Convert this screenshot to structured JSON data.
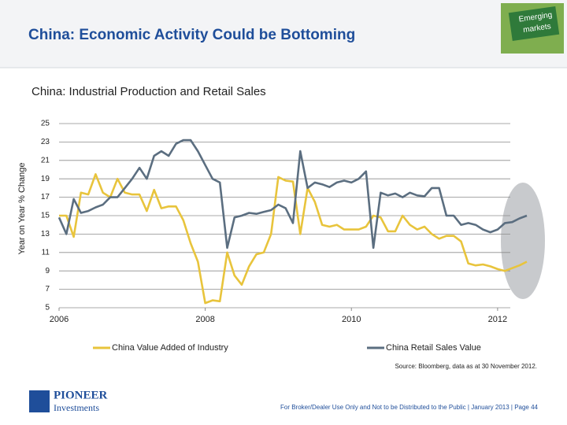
{
  "slide": {
    "title": "China: Economic Activity Could be Bottoming",
    "badge": [
      "Emerging",
      "markets"
    ],
    "source": "Source: Bloomberg, data as at 30 November 2012.",
    "logo": [
      "PIONEER",
      "Investments"
    ],
    "footer": "For Broker/Dealer Use Only and Not to be Distributed to the Public  | January 2013 | Page 44"
  },
  "chart_data": {
    "type": "line",
    "title": "China: Industrial Production and Retail Sales",
    "y_label": "Year on Year % Change",
    "x": [
      2006,
      2006.1,
      2006.2,
      2006.3,
      2006.4,
      2006.5,
      2006.6,
      2006.7,
      2006.8,
      2006.9,
      2007,
      2007.1,
      2007.2,
      2007.3,
      2007.4,
      2007.5,
      2007.6,
      2007.7,
      2007.8,
      2007.9,
      2008,
      2008.1,
      2008.2,
      2008.3,
      2008.4,
      2008.5,
      2008.6,
      2008.7,
      2008.8,
      2008.9,
      2009,
      2009.1,
      2009.2,
      2009.3,
      2009.4,
      2009.5,
      2009.6,
      2009.7,
      2009.8,
      2009.9,
      2010,
      2010.1,
      2010.2,
      2010.3,
      2010.4,
      2010.5,
      2010.6,
      2010.7,
      2010.8,
      2010.9,
      2011,
      2011.1,
      2011.2,
      2011.3,
      2011.4,
      2011.5,
      2011.6,
      2011.7,
      2011.8,
      2011.9,
      2012,
      2012.1,
      2012.2,
      2012.3,
      2012.4
    ],
    "xlim": [
      2006,
      2012.4
    ],
    "xticks": [
      2006,
      2008,
      2010,
      2012
    ],
    "ylim": [
      5,
      25
    ],
    "yticks": [
      5,
      7,
      9,
      11,
      13,
      15,
      17,
      19,
      21,
      23,
      25
    ],
    "grid": true,
    "series": [
      {
        "name": "China Value Added of Industry",
        "color": "#e8c43c",
        "values": [
          15.0,
          15.0,
          12.7,
          17.5,
          17.3,
          19.5,
          17.5,
          17.0,
          19.0,
          17.5,
          17.3,
          17.3,
          15.5,
          17.8,
          15.8,
          16.0,
          16.0,
          14.5,
          12.0,
          10.0,
          5.5,
          5.8,
          5.7,
          11.0,
          8.5,
          7.5,
          9.5,
          10.8,
          11.0,
          13.0,
          19.2,
          18.8,
          18.7,
          13.0,
          18.0,
          16.5,
          14.0,
          13.8,
          14.0,
          13.5,
          13.5,
          13.5,
          13.8,
          15.0,
          14.8,
          13.3,
          13.3,
          15.0,
          14.0,
          13.5,
          13.8,
          13.0,
          12.5,
          12.8,
          12.8,
          12.2,
          9.8,
          9.6,
          9.7,
          9.5,
          9.2,
          9.0,
          9.3,
          9.6,
          10.0
        ]
      },
      {
        "name": "China Retail Sales Value",
        "color": "#5b6e80",
        "values": [
          14.8,
          13.0,
          16.8,
          15.3,
          15.5,
          15.9,
          16.2,
          17.0,
          17.0,
          18.0,
          19.0,
          20.2,
          19.0,
          21.5,
          22.0,
          21.5,
          22.8,
          23.2,
          23.2,
          22.0,
          20.5,
          19.0,
          18.6,
          11.5,
          14.8,
          15.0,
          15.3,
          15.2,
          15.4,
          15.6,
          16.2,
          15.8,
          14.2,
          22.0,
          18.0,
          18.6,
          18.4,
          18.1,
          18.6,
          18.8,
          18.6,
          19.0,
          19.8,
          11.5,
          17.5,
          17.2,
          17.4,
          17.0,
          17.5,
          17.2,
          17.1,
          18.0,
          18.0,
          15.0,
          15.0,
          14.0,
          14.2,
          14.0,
          13.5,
          13.2,
          13.5,
          14.2,
          14.3,
          14.7,
          15.0
        ]
      }
    ]
  }
}
